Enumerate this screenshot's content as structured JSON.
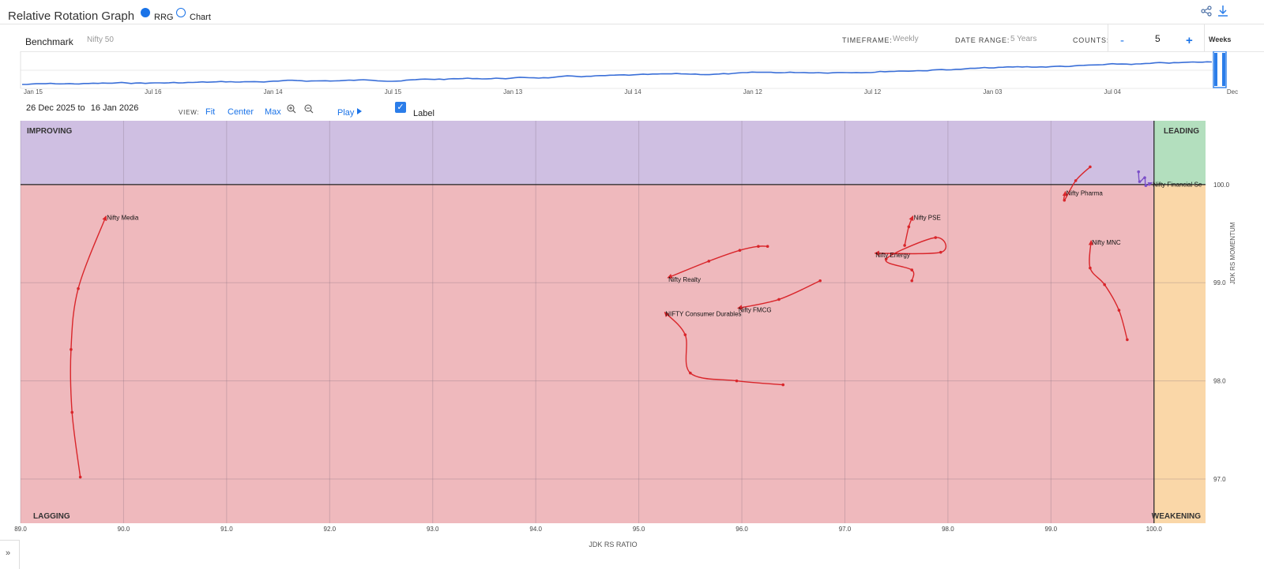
{
  "header": {
    "title": "Relative Rotation Graph",
    "mode_options": [
      {
        "label": "RRG",
        "selected": true
      },
      {
        "label": "Chart",
        "selected": false
      }
    ],
    "share_icon": "share-icon",
    "download_icon": "download-icon"
  },
  "controls": {
    "benchmark_label": "Benchmark",
    "benchmark_value": "Nifty 50",
    "timeframe_label": "TIMEFRAME:",
    "timeframe_value": "Weekly",
    "date_range_label": "DATE RANGE:",
    "date_range_value": "5 Years",
    "counts_label": "COUNTS:",
    "counts_minus": "-",
    "counts_value": "5",
    "counts_plus": "+",
    "counts_unit": "Weeks"
  },
  "timeline": {
    "tick_labels": [
      "Jan 15",
      "Jul 16",
      "Jan 14",
      "Jul 15",
      "Jan 13",
      "Jul 14",
      "Jan 12",
      "Jul 12",
      "Jan 03",
      "Jul 04",
      "Dec"
    ]
  },
  "viewbar": {
    "from_day": "26",
    "from_month": "Dec",
    "from_year": "2025",
    "to_word": "to",
    "to_day": "16",
    "to_month": "Jan",
    "to_year": "2026",
    "view_label": "VIEW:",
    "fit": "Fit",
    "center": "Center",
    "max": "Max",
    "play": "Play",
    "label_toggle": "Label",
    "label_checked": true
  },
  "chart_data": {
    "type": "scatter",
    "xlabel": "JDK RS RATIO",
    "ylabel": "JDK RS MOMENTUM",
    "xlim": [
      89.0,
      100.5
    ],
    "ylim": [
      96.55,
      100.65
    ],
    "x_ticks": [
      "89.0",
      "90.0",
      "91.0",
      "92.0",
      "93.0",
      "94.0",
      "95.0",
      "96.0",
      "97.0",
      "98.0",
      "99.0",
      "100.0"
    ],
    "y_ticks": [
      "100.0",
      "99.0",
      "98.0",
      "97.0"
    ],
    "quadrants": {
      "improving": "IMPROVING",
      "leading": "LEADING",
      "lagging": "LAGGING",
      "weakening": "WEAKENING"
    },
    "colors": {
      "improving": "#cfbfe2",
      "leading": "#b3dfbe",
      "lagging": "#efb9bd",
      "weakening": "#fad7a8",
      "tail_lagging": "#d9262b",
      "tail_improving": "#7b4fc8"
    },
    "series": [
      {
        "name": "Nifty Media",
        "points": [
          [
            89.58,
            97.02
          ],
          [
            89.5,
            97.68
          ],
          [
            89.49,
            98.32
          ],
          [
            89.56,
            98.94
          ],
          [
            89.83,
            99.68
          ]
        ]
      },
      {
        "name": "Nifty Realty",
        "points": [
          [
            96.25,
            99.37
          ],
          [
            96.16,
            99.37
          ],
          [
            95.98,
            99.33
          ],
          [
            95.68,
            99.22
          ],
          [
            95.28,
            99.05
          ]
        ]
      },
      {
        "name": "NIFTY Consumer Durables",
        "points": [
          [
            96.4,
            97.96
          ],
          [
            95.95,
            98.0
          ],
          [
            95.5,
            98.08
          ],
          [
            95.45,
            98.47
          ],
          [
            95.25,
            98.7
          ]
        ]
      },
      {
        "name": "Nifty FMCG",
        "points": [
          [
            96.76,
            99.02
          ],
          [
            96.36,
            98.83
          ],
          [
            95.96,
            98.74
          ]
        ]
      },
      {
        "name": "Nifty Energy",
        "points": [
          [
            97.65,
            99.02
          ],
          [
            97.65,
            99.13
          ],
          [
            97.4,
            99.24
          ],
          [
            97.88,
            99.46
          ],
          [
            97.93,
            99.31
          ],
          [
            97.29,
            99.3
          ]
        ]
      },
      {
        "name": "Nifty PSE",
        "points": [
          [
            97.58,
            99.38
          ],
          [
            97.62,
            99.57
          ],
          [
            97.66,
            99.68
          ]
        ]
      },
      {
        "name": "Nifty Pharma",
        "points": [
          [
            99.38,
            100.18
          ],
          [
            99.24,
            100.04
          ],
          [
            99.13,
            99.84
          ],
          [
            99.14,
            99.93
          ]
        ]
      },
      {
        "name": "Nifty MNC",
        "points": [
          [
            99.74,
            98.42
          ],
          [
            99.66,
            98.72
          ],
          [
            99.52,
            98.98
          ],
          [
            99.38,
            99.15
          ],
          [
            99.39,
            99.43
          ]
        ]
      },
      {
        "name": "Nifty Financial Se",
        "points": [
          [
            99.85,
            100.13
          ],
          [
            99.86,
            100.03
          ],
          [
            99.91,
            100.07
          ],
          [
            99.92,
            99.99
          ],
          [
            99.98,
            100.02
          ]
        ]
      }
    ]
  },
  "sidebar_toggle": "»"
}
